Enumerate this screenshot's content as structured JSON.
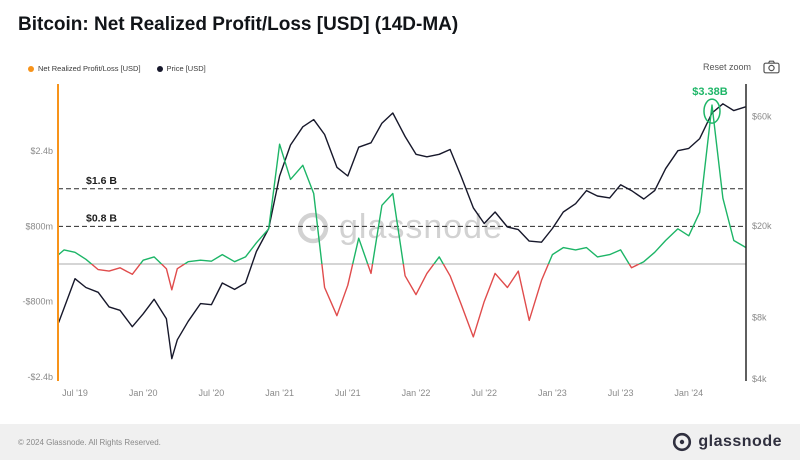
{
  "page": {
    "title": "Bitcoin: Net Realized Profit/Loss [USD] (14D-MA)",
    "watermark": "glassnode",
    "controls": {
      "reset_zoom": "Reset zoom"
    },
    "footer": {
      "copyright": "© 2024 Glassnode. All Rights Reserved.",
      "brand": "glassnode"
    },
    "icons": {
      "camera": "camera-icon",
      "watermark_logo": "glassnode-logo-icon",
      "footer_logo": "glassnode-logo-icon"
    }
  },
  "legend": [
    {
      "label": "Net Realized Profit/Loss [USD]",
      "color": "#f7931a"
    },
    {
      "label": "Price [USD]",
      "color": "#17182b"
    }
  ],
  "chart_data": {
    "type": "line",
    "title": "Bitcoin: Net Realized Profit/Loss [USD] (14D-MA)",
    "x_unit": "decimal_year",
    "x": [
      2019.38,
      2019.42,
      2019.5,
      2019.58,
      2019.67,
      2019.75,
      2019.83,
      2019.92,
      2020.0,
      2020.08,
      2020.17,
      2020.21,
      2020.25,
      2020.33,
      2020.42,
      2020.5,
      2020.58,
      2020.67,
      2020.75,
      2020.83,
      2020.92,
      2021.0,
      2021.08,
      2021.17,
      2021.25,
      2021.33,
      2021.42,
      2021.5,
      2021.58,
      2021.67,
      2021.75,
      2021.83,
      2021.92,
      2022.0,
      2022.08,
      2022.17,
      2022.25,
      2022.33,
      2022.42,
      2022.5,
      2022.58,
      2022.67,
      2022.75,
      2022.83,
      2022.92,
      2023.0,
      2023.08,
      2023.17,
      2023.25,
      2023.33,
      2023.42,
      2023.5,
      2023.58,
      2023.67,
      2023.75,
      2023.83,
      2023.92,
      2024.0,
      2024.08,
      2024.17,
      2024.25,
      2024.33,
      2024.42
    ],
    "series": [
      {
        "name": "Net Realized Profit/Loss [USD]",
        "axis": "left",
        "unit": "USD billions",
        "positive_color": "#1db567",
        "negative_color": "#e04c4c",
        "values": [
          0.2,
          0.3,
          0.25,
          0.1,
          -0.12,
          -0.15,
          -0.08,
          -0.22,
          0.08,
          0.15,
          -0.1,
          -0.55,
          -0.1,
          0.05,
          0.08,
          0.06,
          0.2,
          0.05,
          0.15,
          0.45,
          0.75,
          2.55,
          1.8,
          2.1,
          1.5,
          -0.5,
          -1.1,
          -0.45,
          0.55,
          -0.2,
          1.25,
          1.5,
          -0.25,
          -0.65,
          -0.2,
          0.15,
          -0.25,
          -0.85,
          -1.55,
          -0.8,
          -0.2,
          -0.5,
          -0.15,
          -1.2,
          -0.35,
          0.2,
          0.35,
          0.3,
          0.35,
          0.15,
          0.2,
          0.3,
          -0.08,
          0.05,
          0.25,
          0.5,
          0.75,
          0.6,
          1.1,
          3.38,
          1.4,
          0.5,
          0.35
        ]
      },
      {
        "name": "Price [USD]",
        "axis": "right",
        "unit": "USD",
        "scale": "log",
        "color": "#17182b",
        "values": [
          7600,
          8800,
          11800,
          10800,
          10300,
          8900,
          8600,
          7300,
          8300,
          9600,
          7900,
          5300,
          6400,
          7700,
          9200,
          9100,
          11300,
          10600,
          11300,
          15500,
          19500,
          33000,
          45000,
          54000,
          58000,
          50000,
          36000,
          33000,
          44000,
          46000,
          56000,
          62000,
          49000,
          41000,
          40000,
          41000,
          43000,
          33000,
          24000,
          20500,
          23000,
          19800,
          19300,
          17200,
          17000,
          19500,
          23000,
          25000,
          28500,
          27000,
          26500,
          30200,
          28500,
          26200,
          28500,
          35500,
          42500,
          43500,
          48000,
          62000,
          68000,
          63500,
          66000
        ]
      }
    ],
    "left_axis": {
      "color": "#f7931a",
      "range": [
        -2.6,
        3.8
      ],
      "ticks": [
        {
          "label": "$2.4b",
          "value": 2.4
        },
        {
          "label": "$800m",
          "value": 0.8
        },
        {
          "label": "-$800m",
          "value": -0.8
        },
        {
          "label": "-$2.4b",
          "value": -2.4
        }
      ]
    },
    "right_axis": {
      "scale": "log",
      "range": [
        4000,
        80000
      ],
      "ticks": [
        {
          "label": "$60k",
          "value": 60000
        },
        {
          "label": "$20k",
          "value": 20000
        },
        {
          "label": "$8k",
          "value": 8000
        },
        {
          "label": "$4k",
          "value": 4000
        }
      ]
    },
    "x_ticks": [
      {
        "label": "Jul '19",
        "x": 2019.5
      },
      {
        "label": "Jan '20",
        "x": 2020.0
      },
      {
        "label": "Jul '20",
        "x": 2020.5
      },
      {
        "label": "Jan '21",
        "x": 2021.0
      },
      {
        "label": "Jul '21",
        "x": 2021.5
      },
      {
        "label": "Jan '22",
        "x": 2022.0
      },
      {
        "label": "Jul '22",
        "x": 2022.5
      },
      {
        "label": "Jan '23",
        "x": 2023.0
      },
      {
        "label": "Jul '23",
        "x": 2023.5
      },
      {
        "label": "Jan '24",
        "x": 2024.0
      }
    ],
    "reference_lines": [
      {
        "label": "$1.6 B",
        "value": 1.6,
        "style": "dashed"
      },
      {
        "label": "$0.8 B",
        "value": 0.8,
        "style": "dashed"
      },
      {
        "value": 0,
        "style": "solid"
      }
    ],
    "annotations": [
      {
        "label": "$3.38B",
        "x": 2024.17,
        "value": 3.38,
        "color": "#1db567"
      }
    ],
    "grid": "off",
    "legend_position": "top-left"
  }
}
